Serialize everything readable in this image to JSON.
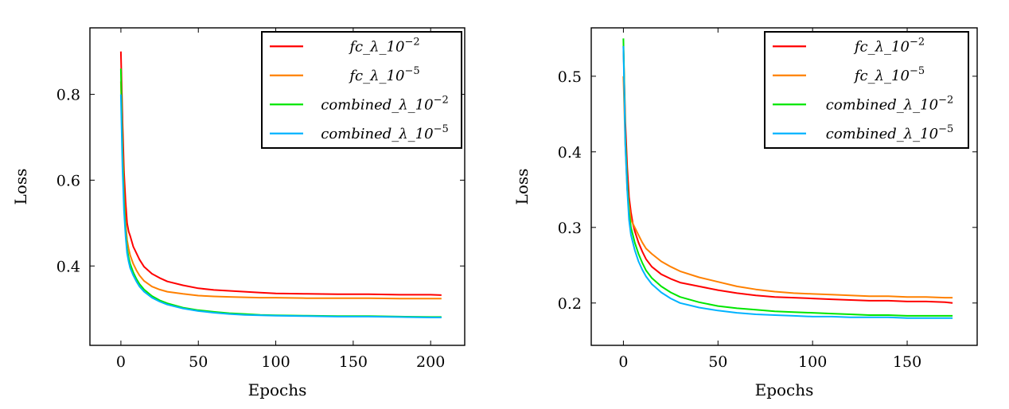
{
  "chart_data": [
    {
      "type": "line",
      "title": "",
      "xlabel": "Epochs",
      "ylabel": "Loss",
      "xlim": [
        -20,
        222
      ],
      "ylim": [
        0.215,
        0.955
      ],
      "xticks": [
        0,
        50,
        100,
        150,
        200
      ],
      "xtick_labels": [
        "0",
        "50",
        "100",
        "150",
        "200"
      ],
      "yticks": [
        0.4,
        0.6,
        0.8
      ],
      "ytick_labels": [
        "0.4",
        "0.6",
        "0.8"
      ],
      "legend_position": "top-right",
      "grid": false,
      "series": [
        {
          "name": "fc_λ_10^-2",
          "legend_label": "fc_λ_10",
          "legend_exp": "−2",
          "color": "#ff0000",
          "x": [
            0,
            1,
            2,
            3,
            4,
            5,
            6,
            8,
            10,
            12,
            15,
            20,
            25,
            30,
            40,
            50,
            60,
            70,
            80,
            90,
            100,
            120,
            140,
            160,
            180,
            200,
            207
          ],
          "y": [
            0.9,
            0.74,
            0.62,
            0.55,
            0.5,
            0.48,
            0.47,
            0.445,
            0.43,
            0.415,
            0.398,
            0.382,
            0.372,
            0.364,
            0.355,
            0.348,
            0.344,
            0.342,
            0.34,
            0.338,
            0.336,
            0.335,
            0.334,
            0.334,
            0.333,
            0.333,
            0.332
          ]
        },
        {
          "name": "fc_λ_10^-5",
          "legend_label": "fc_λ_10",
          "legend_exp": "−5",
          "color": "#ff8000",
          "x": [
            0,
            1,
            2,
            3,
            4,
            5,
            6,
            8,
            10,
            12,
            15,
            20,
            25,
            30,
            40,
            50,
            60,
            70,
            80,
            90,
            100,
            120,
            140,
            160,
            180,
            200,
            207
          ],
          "y": [
            0.83,
            0.68,
            0.57,
            0.5,
            0.46,
            0.44,
            0.425,
            0.405,
            0.39,
            0.378,
            0.365,
            0.352,
            0.345,
            0.34,
            0.335,
            0.331,
            0.329,
            0.328,
            0.327,
            0.326,
            0.326,
            0.325,
            0.325,
            0.325,
            0.324,
            0.324,
            0.324
          ]
        },
        {
          "name": "combined_λ_10^-2",
          "legend_label": "combined_λ_10",
          "legend_exp": "−2",
          "color": "#00e600",
          "x": [
            0,
            1,
            2,
            3,
            4,
            5,
            6,
            8,
            10,
            12,
            15,
            20,
            25,
            30,
            40,
            50,
            60,
            70,
            80,
            90,
            100,
            120,
            140,
            160,
            180,
            200,
            207
          ],
          "y": [
            0.86,
            0.66,
            0.55,
            0.48,
            0.44,
            0.42,
            0.405,
            0.385,
            0.37,
            0.358,
            0.345,
            0.33,
            0.32,
            0.313,
            0.303,
            0.297,
            0.293,
            0.29,
            0.288,
            0.286,
            0.285,
            0.284,
            0.283,
            0.283,
            0.282,
            0.281,
            0.281
          ]
        },
        {
          "name": "combined_λ_10^-5",
          "legend_label": "combined_λ_10",
          "legend_exp": "−5",
          "color": "#00b3ff",
          "x": [
            0,
            1,
            2,
            3,
            4,
            5,
            6,
            8,
            10,
            12,
            15,
            20,
            25,
            30,
            40,
            50,
            60,
            70,
            80,
            90,
            100,
            120,
            140,
            160,
            180,
            200,
            207
          ],
          "y": [
            0.8,
            0.63,
            0.53,
            0.47,
            0.43,
            0.41,
            0.395,
            0.378,
            0.364,
            0.352,
            0.34,
            0.326,
            0.317,
            0.31,
            0.301,
            0.295,
            0.291,
            0.288,
            0.286,
            0.285,
            0.284,
            0.283,
            0.282,
            0.282,
            0.281,
            0.28,
            0.28
          ]
        }
      ]
    },
    {
      "type": "line",
      "title": "",
      "xlabel": "Epochs",
      "ylabel": "Loss",
      "xlim": [
        -17,
        187
      ],
      "ylim": [
        0.144,
        0.564
      ],
      "xticks": [
        0,
        50,
        100,
        150
      ],
      "xtick_labels": [
        "0",
        "50",
        "100",
        "150"
      ],
      "yticks": [
        0.2,
        0.3,
        0.4,
        0.5
      ],
      "ytick_labels": [
        "0.2",
        "0.3",
        "0.4",
        "0.5"
      ],
      "legend_position": "top-right",
      "grid": false,
      "series": [
        {
          "name": "fc_λ_10^-2",
          "legend_label": "fc_λ_10",
          "legend_exp": "−2",
          "color": "#ff0000",
          "x": [
            0,
            1,
            2,
            3,
            4,
            5,
            6,
            8,
            10,
            12,
            15,
            20,
            25,
            30,
            40,
            50,
            60,
            70,
            80,
            90,
            100,
            110,
            120,
            130,
            140,
            150,
            160,
            170,
            174
          ],
          "y": [
            0.54,
            0.44,
            0.38,
            0.34,
            0.32,
            0.305,
            0.295,
            0.28,
            0.268,
            0.258,
            0.248,
            0.238,
            0.232,
            0.227,
            0.222,
            0.217,
            0.213,
            0.21,
            0.208,
            0.207,
            0.206,
            0.205,
            0.204,
            0.203,
            0.203,
            0.202,
            0.202,
            0.201,
            0.2
          ]
        },
        {
          "name": "fc_λ_10^-5",
          "legend_label": "fc_λ_10",
          "legend_exp": "−5",
          "color": "#ff8000",
          "x": [
            0,
            1,
            2,
            3,
            4,
            5,
            6,
            8,
            10,
            12,
            15,
            20,
            25,
            30,
            40,
            50,
            60,
            70,
            80,
            90,
            100,
            110,
            120,
            130,
            140,
            150,
            160,
            170,
            174
          ],
          "y": [
            0.5,
            0.41,
            0.35,
            0.33,
            0.31,
            0.305,
            0.3,
            0.29,
            0.28,
            0.272,
            0.265,
            0.255,
            0.248,
            0.242,
            0.234,
            0.228,
            0.222,
            0.218,
            0.215,
            0.213,
            0.212,
            0.211,
            0.21,
            0.209,
            0.209,
            0.208,
            0.208,
            0.207,
            0.207
          ]
        },
        {
          "name": "combined_λ_10^-2",
          "legend_label": "combined_λ_10",
          "legend_exp": "−2",
          "color": "#00e600",
          "x": [
            0,
            1,
            2,
            3,
            4,
            5,
            6,
            8,
            10,
            12,
            15,
            20,
            25,
            30,
            40,
            50,
            60,
            70,
            80,
            90,
            100,
            110,
            120,
            130,
            140,
            150,
            160,
            170,
            174
          ],
          "y": [
            0.55,
            0.42,
            0.36,
            0.32,
            0.3,
            0.29,
            0.28,
            0.265,
            0.253,
            0.243,
            0.233,
            0.222,
            0.214,
            0.208,
            0.201,
            0.196,
            0.193,
            0.191,
            0.189,
            0.188,
            0.187,
            0.186,
            0.185,
            0.184,
            0.184,
            0.183,
            0.183,
            0.183,
            0.183
          ]
        },
        {
          "name": "combined_λ_10^-5",
          "legend_label": "combined_λ_10",
          "legend_exp": "−5",
          "color": "#00b3ff",
          "x": [
            0,
            1,
            2,
            3,
            4,
            5,
            6,
            8,
            10,
            12,
            15,
            20,
            25,
            30,
            40,
            50,
            60,
            70,
            80,
            90,
            100,
            110,
            120,
            130,
            140,
            150,
            160,
            170,
            174
          ],
          "y": [
            0.54,
            0.41,
            0.35,
            0.31,
            0.29,
            0.28,
            0.27,
            0.255,
            0.244,
            0.235,
            0.225,
            0.214,
            0.206,
            0.2,
            0.194,
            0.19,
            0.187,
            0.185,
            0.184,
            0.183,
            0.182,
            0.182,
            0.181,
            0.181,
            0.181,
            0.18,
            0.18,
            0.18,
            0.18
          ]
        }
      ]
    }
  ]
}
